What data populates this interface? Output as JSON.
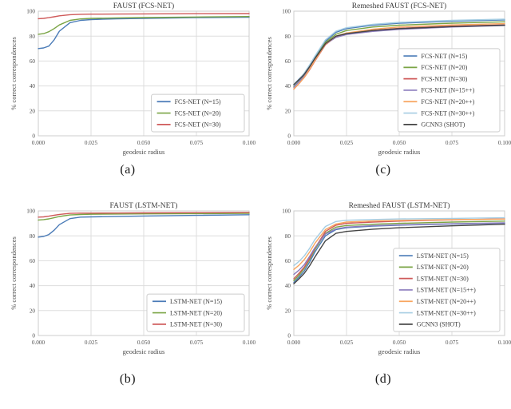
{
  "style": {
    "background": "#ffffff",
    "grid_color": "#dddddd",
    "spine_color": "#cccccc",
    "title_color": "#3a3a3a",
    "tick_color": "#4d4d4d",
    "legend_text_color": "#3a3a3a",
    "palette": {
      "blue": "#4a7bb7",
      "green": "#7aa444",
      "red": "#cf5a5a",
      "purple": "#8b7cbd",
      "orange": "#f8a55f",
      "lightblue": "#a5cde3",
      "black": "#444444"
    }
  },
  "captions": {
    "a": "(a)",
    "b": "(b)",
    "c": "(c)",
    "d": "(d)"
  },
  "chart_data": [
    {
      "id": "a",
      "type": "line",
      "title": "FAUST (FCS-NET)",
      "xlabel": "geodesic radius",
      "ylabel": "% correct correspondences",
      "xlim": [
        0,
        0.1
      ],
      "ylim": [
        0,
        100
      ],
      "xticks": [
        0,
        0.025,
        0.05,
        0.075,
        0.1
      ],
      "xtick_labels": [
        "0.000",
        "0.025",
        "0.050",
        "0.075",
        "0.100"
      ],
      "yticks": [
        0,
        20,
        40,
        60,
        80,
        100
      ],
      "grid": true,
      "legend_position": "lower-right",
      "x": [
        0,
        0.0025,
        0.005,
        0.0075,
        0.01,
        0.015,
        0.02,
        0.025,
        0.0375,
        0.05,
        0.075,
        0.1
      ],
      "series": [
        {
          "name": "FCS-NET (N=15)",
          "color": "#4a7bb7",
          "values": [
            70,
            70.5,
            72,
            77,
            84,
            90.8,
            92.6,
            93.3,
            93.9,
            94.2,
            94.8,
            95.2
          ]
        },
        {
          "name": "FCS-NET (N=20)",
          "color": "#7aa444",
          "values": [
            81.5,
            82,
            83.5,
            86,
            89,
            92.6,
            93.8,
            94.2,
            94.6,
            94.9,
            95.3,
            95.7
          ]
        },
        {
          "name": "FCS-NET (N=30)",
          "color": "#cf5a5a",
          "values": [
            94,
            94.2,
            94.8,
            95.5,
            96.3,
            97.2,
            97.5,
            97.6,
            97.7,
            97.8,
            98,
            98.1
          ]
        }
      ]
    },
    {
      "id": "c",
      "type": "line",
      "title": "Remeshed FAUST (FCS-NET)",
      "xlabel": "geodesic radius",
      "ylabel": "% correct correspondences",
      "xlim": [
        0,
        0.1
      ],
      "ylim": [
        0,
        100
      ],
      "xticks": [
        0,
        0.025,
        0.05,
        0.075,
        0.1
      ],
      "xtick_labels": [
        "0.000",
        "0.025",
        "0.050",
        "0.075",
        "0.100"
      ],
      "yticks": [
        0,
        20,
        40,
        60,
        80,
        100
      ],
      "grid": true,
      "legend_position": "lower-right",
      "x": [
        0,
        0.0025,
        0.005,
        0.0075,
        0.01,
        0.015,
        0.02,
        0.025,
        0.0375,
        0.05,
        0.075,
        0.1
      ],
      "series": [
        {
          "name": "FCS-NET (N=15)",
          "color": "#4a7bb7",
          "values": [
            41,
            45.5,
            50,
            56,
            63,
            76,
            83,
            86,
            88.8,
            90.3,
            92,
            93
          ]
        },
        {
          "name": "FCS-NET (N=20)",
          "color": "#7aa444",
          "values": [
            39.5,
            44,
            49,
            55,
            62,
            75,
            81.5,
            84.5,
            87.3,
            88.8,
            90.4,
            91.5
          ]
        },
        {
          "name": "FCS-NET (N=30)",
          "color": "#cf5a5a",
          "values": [
            37.5,
            42,
            47,
            53,
            60,
            73,
            79.5,
            82,
            84.7,
            86.3,
            88,
            89
          ]
        },
        {
          "name": "FCS-NET (N=15++)",
          "color": "#8b7cbd",
          "values": [
            39,
            43.5,
            48,
            54,
            61,
            73.5,
            79,
            81.3,
            83.8,
            85.4,
            87.3,
            88.5
          ]
        },
        {
          "name": "FCS-NET (N=20++)",
          "color": "#f8a55f",
          "values": [
            37.5,
            42,
            47,
            53.5,
            60.5,
            73.5,
            80,
            82.5,
            85.5,
            87.3,
            89,
            90
          ]
        },
        {
          "name": "FCS-NET (N=30++)",
          "color": "#a5cde3",
          "values": [
            40.5,
            45,
            50.5,
            57,
            64,
            77,
            84,
            86.7,
            89.5,
            91,
            92.6,
            93.6
          ]
        },
        {
          "name": "GCNN3 (SHOT)",
          "color": "#444444",
          "values": [
            41,
            45,
            49.5,
            55.5,
            62,
            74,
            80,
            82,
            84.5,
            86,
            87.6,
            88.8
          ]
        }
      ]
    },
    {
      "id": "b",
      "type": "line",
      "title": "FAUST (LSTM-NET)",
      "xlabel": "geodesic radius",
      "ylabel": "% correct correspondences",
      "xlim": [
        0,
        0.1
      ],
      "ylim": [
        0,
        100
      ],
      "xticks": [
        0,
        0.025,
        0.05,
        0.075,
        0.1
      ],
      "xtick_labels": [
        "0.000",
        "0.025",
        "0.050",
        "0.075",
        "0.100"
      ],
      "yticks": [
        0,
        20,
        40,
        60,
        80,
        100
      ],
      "grid": true,
      "legend_position": "lower-right",
      "x": [
        0,
        0.0025,
        0.005,
        0.0075,
        0.01,
        0.015,
        0.02,
        0.025,
        0.0375,
        0.05,
        0.075,
        0.1
      ],
      "series": [
        {
          "name": "LSTM-NET (N=15)",
          "color": "#4a7bb7",
          "values": [
            79,
            79.5,
            81,
            84.5,
            89,
            93.8,
            95,
            95.2,
            95.6,
            95.9,
            96.4,
            96.9
          ]
        },
        {
          "name": "LSTM-NET (N=20)",
          "color": "#7aa444",
          "values": [
            92.7,
            93,
            93.6,
            94.5,
            95.5,
            96.7,
            97.1,
            97.3,
            97.5,
            97.6,
            97.8,
            98
          ]
        },
        {
          "name": "LSTM-NET (N=30)",
          "color": "#cf5a5a",
          "values": [
            95,
            95.2,
            95.8,
            96.5,
            97.2,
            98,
            98.2,
            98.2,
            98.3,
            98.4,
            98.6,
            98.8
          ]
        }
      ]
    },
    {
      "id": "d",
      "type": "line",
      "title": "Remeshed FAUST (LSTM-NET)",
      "xlabel": "geodesic radius",
      "ylabel": "% correct correspondences",
      "xlim": [
        0,
        0.1
      ],
      "ylim": [
        0,
        100
      ],
      "xticks": [
        0,
        0.025,
        0.05,
        0.075,
        0.1
      ],
      "xtick_labels": [
        "0.000",
        "0.025",
        "0.050",
        "0.075",
        "0.100"
      ],
      "yticks": [
        0,
        20,
        40,
        60,
        80,
        100
      ],
      "grid": true,
      "legend_position": "lower-right",
      "x": [
        0,
        0.0025,
        0.005,
        0.0075,
        0.01,
        0.015,
        0.02,
        0.025,
        0.0375,
        0.05,
        0.075,
        0.1
      ],
      "series": [
        {
          "name": "LSTM-NET (N=15)",
          "color": "#4a7bb7",
          "values": [
            42.5,
            47,
            52,
            59,
            67,
            80,
            85,
            86.5,
            87.8,
            88.5,
            89.5,
            90.2
          ]
        },
        {
          "name": "LSTM-NET (N=20)",
          "color": "#7aa444",
          "values": [
            44,
            48.5,
            54,
            61,
            69,
            82,
            87,
            88.3,
            89.3,
            90,
            91,
            91.8
          ]
        },
        {
          "name": "LSTM-NET (N=30)",
          "color": "#cf5a5a",
          "values": [
            45.5,
            50,
            55,
            62,
            70,
            83.5,
            88.5,
            90,
            91,
            91.8,
            92.8,
            93.5
          ]
        },
        {
          "name": "LSTM-NET (N=15++)",
          "color": "#8b7cbd",
          "values": [
            49,
            52.5,
            57,
            63.5,
            70.5,
            81.5,
            85.5,
            87,
            88.2,
            88.8,
            89.7,
            90.4
          ]
        },
        {
          "name": "LSTM-NET (N=20++)",
          "color": "#f8a55f",
          "values": [
            53,
            56.5,
            61,
            67,
            74,
            85,
            89.5,
            91,
            91.9,
            92.4,
            93,
            93.4
          ]
        },
        {
          "name": "LSTM-NET (N=30++)",
          "color": "#a5cde3",
          "values": [
            56,
            59.5,
            64,
            70,
            77,
            87.5,
            91.5,
            92.5,
            93.1,
            93.5,
            94,
            94.5
          ]
        },
        {
          "name": "GCNN3 (SHOT)",
          "color": "#444444",
          "values": [
            41.5,
            45.5,
            50,
            56,
            63,
            76,
            82,
            83.5,
            85.3,
            86.5,
            88,
            89.3
          ]
        }
      ]
    }
  ]
}
